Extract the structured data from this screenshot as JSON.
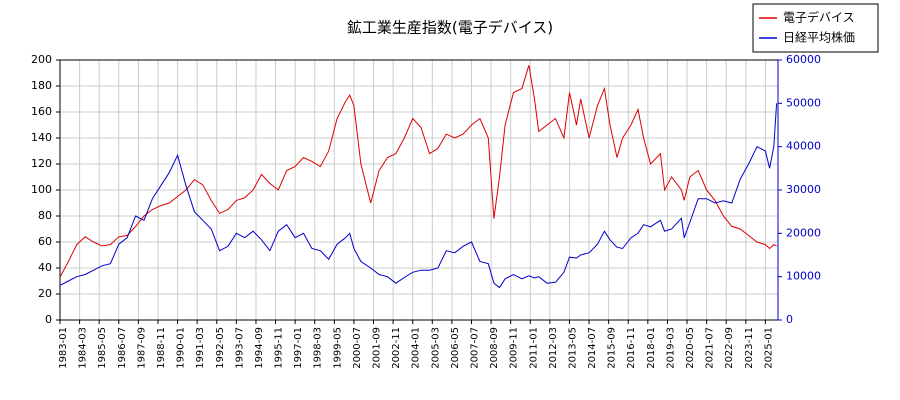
{
  "chart_data": {
    "type": "line",
    "title": "鉱工業生産指数(電子デバイス)",
    "x": [
      "1983-01",
      "1983-07",
      "1984-01",
      "1984-07",
      "1985-01",
      "1985-07",
      "1986-01",
      "1986-07",
      "1987-01",
      "1987-07",
      "1988-01",
      "1988-07",
      "1989-01",
      "1989-07",
      "1990-01",
      "1990-07",
      "1991-01",
      "1991-07",
      "1992-01",
      "1992-07",
      "1993-01",
      "1993-07",
      "1994-01",
      "1994-07",
      "1995-01",
      "1995-07",
      "1996-01",
      "1996-07",
      "1997-01",
      "1997-07",
      "1998-01",
      "1998-07",
      "1999-01",
      "1999-07",
      "2000-01",
      "2000-04",
      "2000-07",
      "2000-12",
      "2001-07",
      "2002-01",
      "2002-07",
      "2003-01",
      "2003-07",
      "2004-01",
      "2004-07",
      "2005-01",
      "2005-07",
      "2006-01",
      "2006-07",
      "2007-01",
      "2007-07",
      "2008-01",
      "2008-07",
      "2008-11",
      "2009-03",
      "2009-07",
      "2010-01",
      "2010-07",
      "2010-12",
      "2011-04",
      "2011-07",
      "2012-01",
      "2012-07",
      "2013-01",
      "2013-05",
      "2013-10",
      "2014-01",
      "2014-07",
      "2015-01",
      "2015-06",
      "2015-10",
      "2016-03",
      "2016-07",
      "2017-01",
      "2017-06",
      "2017-10",
      "2018-03",
      "2018-10",
      "2019-01",
      "2019-06",
      "2020-01",
      "2020-03",
      "2020-07",
      "2021-01",
      "2021-07",
      "2022-01",
      "2022-07",
      "2023-01",
      "2023-07",
      "2024-01",
      "2024-07",
      "2025-01",
      "2025-04",
      "2025-07",
      "2025-09"
    ],
    "series": [
      {
        "name": "電子デバイス",
        "color": "#dd0000",
        "axis": "y",
        "values": [
          33,
          45,
          58,
          64,
          60,
          57,
          58,
          64,
          65,
          72,
          80,
          85,
          88,
          90,
          95,
          100,
          108,
          104,
          92,
          82,
          85,
          92,
          94,
          100,
          112,
          105,
          100,
          115,
          118,
          125,
          122,
          118,
          130,
          155,
          168,
          173,
          165,
          120,
          90,
          115,
          125,
          128,
          140,
          155,
          148,
          128,
          132,
          143,
          140,
          143,
          150,
          155,
          140,
          78,
          110,
          150,
          175,
          178,
          196,
          170,
          145,
          150,
          155,
          140,
          175,
          150,
          170,
          140,
          165,
          178,
          150,
          125,
          140,
          150,
          162,
          140,
          120,
          128,
          100,
          110,
          100,
          92,
          110,
          115,
          100,
          92,
          80,
          72,
          70,
          65,
          60,
          58,
          55,
          58,
          57
        ]
      },
      {
        "name": "日経平均株価",
        "color": "#0000cc",
        "axis": "y2",
        "values": [
          8000,
          9000,
          10000,
          10500,
          11500,
          12500,
          13000,
          17500,
          19000,
          24000,
          23000,
          28000,
          31000,
          34000,
          38000,
          31000,
          25000,
          23000,
          21000,
          16000,
          17000,
          20000,
          19000,
          20500,
          18500,
          16000,
          20500,
          22000,
          19000,
          20000,
          16500,
          16000,
          14000,
          17500,
          19000,
          20000,
          16500,
          13500,
          12000,
          10500,
          10000,
          8500,
          9800,
          11000,
          11500,
          11500,
          12000,
          16000,
          15500,
          17000,
          18000,
          13500,
          13000,
          8500,
          7500,
          9500,
          10500,
          9500,
          10200,
          9700,
          10000,
          8500,
          8700,
          11000,
          14500,
          14300,
          15000,
          15500,
          17500,
          20500,
          18500,
          16800,
          16500,
          19000,
          20000,
          22000,
          21500,
          23000,
          20500,
          21000,
          23500,
          19000,
          22500,
          28000,
          28000,
          27000,
          27500,
          27000,
          32500,
          36000,
          40000,
          39000,
          35000,
          40000,
          50000
        ]
      }
    ],
    "xlim": [
      "1983-01",
      "2025-10"
    ],
    "xticks": [
      "1983-01",
      "1984-03",
      "1985-05",
      "1986-07",
      "1987-09",
      "1988-11",
      "1990-01",
      "1991-03",
      "1992-05",
      "1993-07",
      "1994-09",
      "1995-11",
      "1997-01",
      "1998-03",
      "1999-05",
      "2000-07",
      "2001-09",
      "2002-11",
      "2004-01",
      "2005-03",
      "2006-05",
      "2007-07",
      "2008-09",
      "2009-11",
      "2011-01",
      "2012-03",
      "2013-05",
      "2014-07",
      "2015-09",
      "2016-11",
      "2018-01",
      "2019-03",
      "2020-05",
      "2021-07",
      "2022-09",
      "2023-11",
      "2025-01"
    ],
    "ylim": [
      0,
      200
    ],
    "yticks": [
      0,
      20,
      40,
      60,
      80,
      100,
      120,
      140,
      160,
      180,
      200
    ],
    "y2lim": [
      0,
      60000
    ],
    "y2ticks": [
      0,
      10000,
      20000,
      30000,
      40000,
      50000,
      60000
    ],
    "grid": true,
    "legend": "upper right"
  }
}
